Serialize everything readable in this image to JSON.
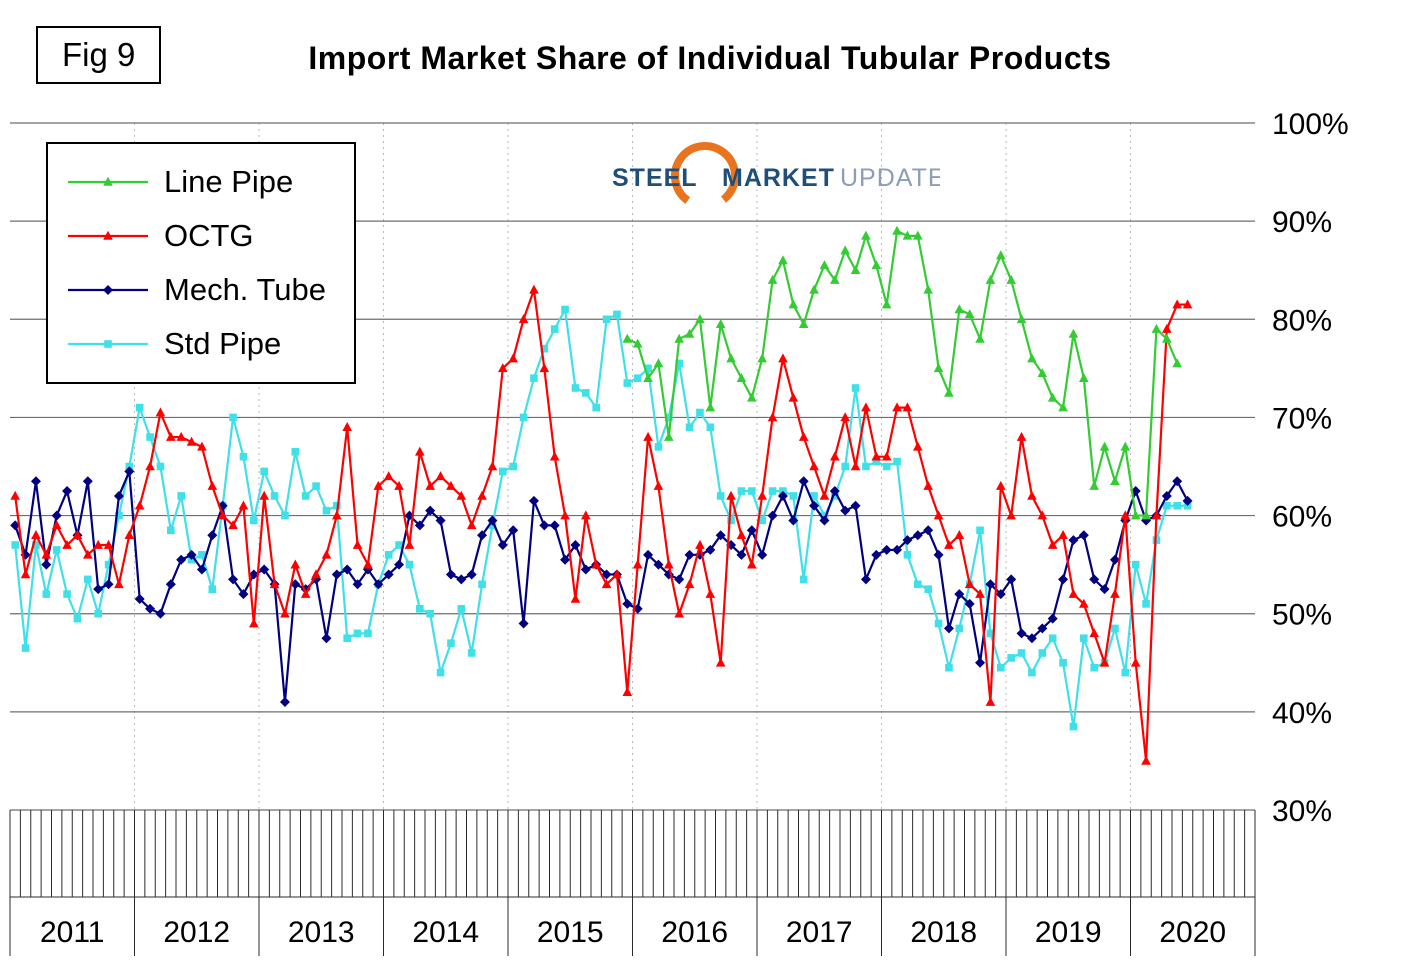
{
  "figure": {
    "fig_label": "Fig 9",
    "title": "Import Market Share of Individual Tubular Products"
  },
  "logo": {
    "steel": "STEEL",
    "market": "MARKET",
    "update": "UPDATE",
    "swoosh_color": "#E87420",
    "steel_color": "#1F4E79",
    "market_color": "#1F4E79",
    "update_color": "#8C9DB5"
  },
  "legend": [
    {
      "label": "Line Pipe",
      "color": "#33CC33",
      "marker": "triangle"
    },
    {
      "label": "OCTG",
      "color": "#FF0000",
      "marker": "triangle"
    },
    {
      "label": "Mech. Tube",
      "color": "#000080",
      "marker": "diamond"
    },
    {
      "label": "Std Pipe",
      "color": "#3FE0E8",
      "marker": "square"
    }
  ],
  "chart_data": {
    "type": "line",
    "title": "Import Market Share of Individual Tubular Products",
    "x_start": "2011-01",
    "x_end": "2020-06",
    "points_per_series": 114,
    "x_year_labels": [
      "2011",
      "2012",
      "2013",
      "2014",
      "2015",
      "2016",
      "2017",
      "2018",
      "2019",
      "2020"
    ],
    "y_ticks": [
      "100%",
      "90%",
      "80%",
      "70%",
      "60%",
      "50%",
      "40%",
      "30%"
    ],
    "ylim": [
      30,
      100
    ],
    "y_axis_side": "right",
    "grid": {
      "horizontal": "solid",
      "vertical_year_lines": "dotted",
      "monthly_minor_ticks": true
    },
    "legend_position": "top-left",
    "series": [
      {
        "name": "Line Pipe",
        "color": "#33CC33",
        "marker": "triangle",
        "values": [
          null,
          null,
          null,
          null,
          null,
          null,
          null,
          null,
          null,
          null,
          null,
          null,
          null,
          null,
          null,
          null,
          null,
          null,
          null,
          null,
          null,
          null,
          null,
          null,
          null,
          null,
          null,
          null,
          null,
          null,
          null,
          null,
          null,
          null,
          null,
          null,
          null,
          null,
          null,
          null,
          null,
          null,
          null,
          null,
          null,
          null,
          null,
          null,
          null,
          null,
          null,
          null,
          null,
          null,
          null,
          null,
          null,
          null,
          null,
          78,
          77.5,
          74,
          75.5,
          68,
          78,
          78.5,
          80,
          71,
          79.5,
          76,
          74,
          72,
          76,
          84,
          86,
          81.5,
          79.5,
          83,
          85.5,
          84,
          87,
          85,
          88.5,
          85.5,
          81.5,
          89,
          88.5,
          88.5,
          83,
          75,
          72.5,
          81,
          80.5,
          78,
          84,
          86.5,
          84,
          80,
          76,
          74.5,
          72,
          71,
          78.5,
          74,
          63,
          67,
          63.5,
          67,
          60,
          60,
          79,
          78,
          75.5,
          null
        ]
      },
      {
        "name": "OCTG",
        "color": "#FF0000",
        "marker": "triangle",
        "values": [
          62,
          54,
          58,
          56,
          59,
          57,
          58,
          56,
          57,
          57,
          53,
          58,
          61,
          65,
          70.5,
          68,
          68,
          67.5,
          67,
          63,
          60,
          59,
          61,
          49,
          62,
          53,
          50,
          55,
          52,
          54,
          56,
          60,
          69,
          57,
          55,
          63,
          64,
          63,
          57,
          66.5,
          63,
          64,
          63,
          62,
          59,
          62,
          65,
          75,
          76,
          80,
          83,
          75,
          66,
          60,
          51.5,
          60,
          55,
          53,
          54,
          42,
          55,
          68,
          63,
          55,
          50,
          53,
          57,
          52,
          45,
          62,
          58,
          55,
          62,
          70,
          76,
          72,
          68,
          65,
          62,
          66,
          70,
          65,
          71,
          66,
          66,
          71,
          71,
          67,
          63,
          60,
          57,
          58,
          53,
          52,
          41,
          63,
          60,
          68,
          62,
          60,
          57,
          58,
          52,
          51,
          48,
          45,
          52,
          60,
          45,
          35,
          60,
          79,
          81.5,
          81.5
        ]
      },
      {
        "name": "Mech. Tube",
        "color": "#000080",
        "marker": "diamond",
        "values": [
          59,
          56,
          63.5,
          55,
          60,
          62.5,
          58,
          63.5,
          52.5,
          53,
          62,
          64.5,
          51.5,
          50.5,
          50,
          53,
          55.5,
          56,
          54.5,
          58,
          61,
          53.5,
          52,
          54,
          54.5,
          53,
          41,
          53,
          52.5,
          53.5,
          47.5,
          54,
          54.5,
          53,
          54.5,
          53,
          54,
          55,
          60,
          59,
          60.5,
          59.5,
          54,
          53.5,
          54,
          58,
          59.5,
          57,
          58.5,
          49,
          61.5,
          59,
          59,
          55.5,
          57,
          54.5,
          55,
          54,
          54,
          51,
          50.5,
          56,
          55,
          54,
          53.5,
          56,
          56,
          56.5,
          58,
          57,
          56,
          58.5,
          56,
          60,
          62,
          59.5,
          63.5,
          61,
          59.5,
          62.5,
          60.5,
          61,
          53.5,
          56,
          56.5,
          56.5,
          57.5,
          58,
          58.5,
          56,
          48.5,
          52,
          51,
          45,
          53,
          52,
          53.5,
          48,
          47.5,
          48.5,
          49.5,
          53.5,
          57.5,
          58,
          53.5,
          52.5,
          55.5,
          59.5,
          62.5,
          59.5,
          60,
          62,
          63.5,
          61.5
        ]
      },
      {
        "name": "Std Pipe",
        "color": "#3FE0E8",
        "marker": "square",
        "values": [
          57,
          46.5,
          57,
          52,
          56.5,
          52,
          49.5,
          53.5,
          50,
          55,
          60,
          65,
          71,
          68,
          65,
          58.5,
          62,
          55.5,
          56,
          52.5,
          61,
          70,
          66,
          59.5,
          64.5,
          62,
          60,
          66.5,
          62,
          63,
          60.5,
          61,
          47.5,
          48,
          48,
          53,
          56,
          57,
          55,
          50.5,
          50,
          44,
          47,
          50.5,
          46,
          53,
          59,
          64.5,
          65,
          70,
          74,
          77,
          79,
          81,
          73,
          72.5,
          71,
          80,
          80.5,
          73.5,
          74,
          75,
          67,
          70,
          75.5,
          69,
          70.5,
          69,
          62,
          59.5,
          62.5,
          62.5,
          59.5,
          62.5,
          62.5,
          62,
          53.5,
          62,
          60,
          62,
          65,
          73,
          65,
          65.5,
          65,
          65.5,
          56,
          53,
          52.5,
          49,
          44.5,
          48.5,
          53,
          58.5,
          48,
          44.5,
          45.5,
          46,
          44,
          46,
          47.5,
          45,
          38.5,
          47.5,
          44.5,
          45,
          48.5,
          44,
          55,
          51,
          57.5,
          61,
          61,
          61
        ]
      }
    ]
  }
}
